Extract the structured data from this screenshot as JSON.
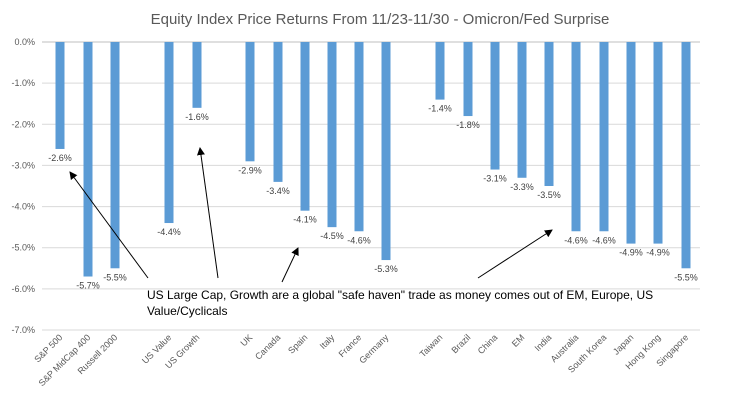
{
  "chart_data": {
    "type": "bar",
    "title": "Equity Index Price Returns From 11/23-11/30 - Omicron/Fed Surprise",
    "xlabel": "",
    "ylabel": "",
    "ylim": [
      -7.0,
      0.0
    ],
    "yticks": [
      "0.0%",
      "-1.0%",
      "-2.0%",
      "-3.0%",
      "-4.0%",
      "-5.0%",
      "-6.0%",
      "-7.0%"
    ],
    "categories": [
      "S&P 500",
      "S&P MidCap 400",
      "Russell 2000",
      "US Value",
      "US Growth",
      "UK",
      "Canada",
      "Spain",
      "Italy",
      "France",
      "Germany",
      "Taiwan",
      "Brazil",
      "China",
      "EM",
      "India",
      "Australia",
      "South Korea",
      "Japan",
      "Hong Kong",
      "Singapore"
    ],
    "values": [
      -2.6,
      -5.7,
      -5.5,
      -4.4,
      -1.6,
      -2.9,
      -3.4,
      -4.1,
      -4.5,
      -4.6,
      -5.3,
      -1.4,
      -1.8,
      -3.1,
      -3.3,
      -3.5,
      -4.6,
      -4.6,
      -4.9,
      -4.9,
      -5.5
    ],
    "data_labels": [
      "-2.6%",
      "-5.7%",
      "-5.5%",
      "-4.4%",
      "-1.6%",
      "-2.9%",
      "-3.4%",
      "-4.1%",
      "-4.5%",
      "-4.6%",
      "-5.3%",
      "-1.4%",
      "-1.8%",
      "-3.1%",
      "-3.3%",
      "-3.5%",
      "-4.6%",
      "-4.6%",
      "-4.9%",
      "-4.9%",
      "-5.5%"
    ],
    "bar_color": "#5B9BD5",
    "grid": true,
    "annotation": {
      "line1": "US Large Cap, Growth are a global \"safe haven\" trade as money comes out of EM, Europe, US",
      "line2": "Value/Cyclicals"
    }
  }
}
